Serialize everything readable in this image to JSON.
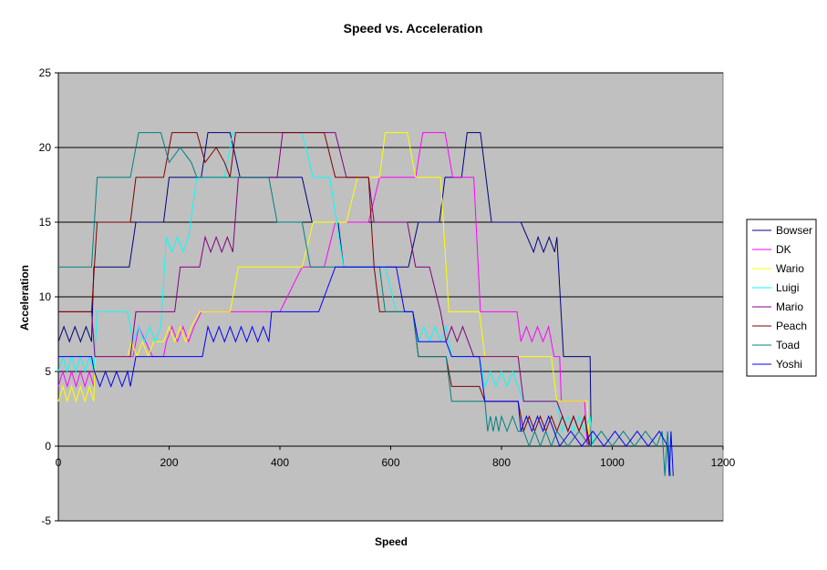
{
  "chart_data": {
    "type": "line",
    "title": "Speed vs. Acceleration",
    "x_label": "Speed",
    "y_label": "Acceleration",
    "xlim": [
      0,
      1200
    ],
    "xticks": [
      0,
      200,
      400,
      600,
      800,
      1000,
      1200
    ],
    "ylim": [
      -5,
      25
    ],
    "yticks": [
      -5,
      0,
      5,
      10,
      15,
      20,
      25
    ],
    "grid": true,
    "legend": "right",
    "series": [
      {
        "name": "Bowser",
        "color": "#000080",
        "x": [
          0,
          10,
          20,
          30,
          40,
          50,
          60,
          64,
          128,
          140,
          190,
          200,
          258,
          270,
          310,
          328,
          440,
          458,
          505,
          515,
          632,
          650,
          688,
          698,
          728,
          738,
          762,
          782,
          835,
          858,
          866,
          876,
          886,
          896,
          900,
          912,
          960,
          962
        ],
        "values": [
          7,
          8,
          7,
          8,
          7,
          8,
          7,
          12,
          12,
          15,
          15,
          18,
          18,
          21,
          21,
          18,
          18,
          15,
          15,
          12,
          12,
          15,
          15,
          18,
          18,
          21,
          21,
          15,
          15,
          13,
          14,
          13,
          14,
          13,
          14,
          6,
          6,
          0
        ]
      },
      {
        "name": "DK",
        "color": "#ff00ff",
        "x": [
          0,
          8,
          16,
          24,
          32,
          40,
          48,
          56,
          64,
          66,
          135,
          145,
          170,
          190,
          195,
          205,
          215,
          225,
          235,
          245,
          258,
          400,
          440,
          480,
          500,
          560,
          580,
          645,
          658,
          698,
          712,
          750,
          762,
          828,
          835,
          845,
          855,
          865,
          875,
          885,
          895,
          905,
          908,
          950,
          955
        ],
        "values": [
          4,
          5,
          4,
          5,
          4,
          5,
          4,
          5,
          4,
          6,
          6,
          8,
          6,
          6,
          7,
          8,
          7,
          8,
          7,
          8,
          9,
          9,
          12,
          12,
          15,
          15,
          18,
          18,
          21,
          21,
          18,
          18,
          9,
          9,
          7,
          8,
          7,
          8,
          7,
          8,
          6,
          6,
          3,
          3,
          0
        ]
      },
      {
        "name": "Wario",
        "color": "#ffff00",
        "x": [
          0,
          8,
          16,
          24,
          32,
          40,
          48,
          56,
          64,
          66,
          125,
          132,
          142,
          152,
          162,
          172,
          190,
          200,
          210,
          220,
          230,
          240,
          255,
          310,
          325,
          440,
          460,
          520,
          540,
          580,
          590,
          630,
          645,
          690,
          705,
          760,
          770,
          890,
          900,
          955,
          958
        ],
        "values": [
          3,
          4,
          3,
          4,
          3,
          4,
          3,
          4,
          3,
          6,
          6,
          7,
          6,
          7,
          6,
          7,
          7,
          8,
          7,
          8,
          7,
          8,
          9,
          9,
          12,
          12,
          15,
          15,
          18,
          18,
          21,
          21,
          18,
          18,
          9,
          9,
          6,
          6,
          3,
          3,
          0
        ]
      },
      {
        "name": "Luigi",
        "color": "#00ffff",
        "x": [
          0,
          8,
          16,
          24,
          32,
          40,
          48,
          56,
          64,
          70,
          125,
          135,
          145,
          155,
          165,
          175,
          185,
          195,
          205,
          215,
          225,
          235,
          250,
          300,
          315,
          440,
          460,
          490,
          515,
          590,
          610,
          640,
          650,
          660,
          670,
          680,
          690,
          700,
          710,
          760,
          770,
          780,
          790,
          800,
          810,
          820,
          830,
          840,
          900,
          910,
          920,
          930,
          940,
          950,
          960,
          965
        ],
        "values": [
          5,
          6,
          5,
          6,
          5,
          6,
          5,
          6,
          5,
          9,
          9,
          7,
          8,
          7,
          8,
          7,
          8,
          14,
          13,
          14,
          13,
          14,
          18,
          18,
          21,
          21,
          18,
          18,
          12,
          12,
          9,
          9,
          7,
          8,
          7,
          8,
          7,
          8,
          6,
          6,
          4,
          5,
          4,
          5,
          4,
          5,
          4,
          3,
          3,
          1,
          2,
          1,
          2,
          1,
          2,
          0
        ]
      },
      {
        "name": "Mario",
        "color": "#800080",
        "x": [
          0,
          60,
          66,
          130,
          140,
          210,
          220,
          255,
          265,
          275,
          285,
          295,
          305,
          315,
          325,
          395,
          405,
          500,
          520,
          560,
          570,
          630,
          645,
          670,
          690,
          700,
          710,
          720,
          730,
          740,
          750,
          830,
          840,
          900,
          910,
          920,
          930,
          940,
          950,
          958
        ],
        "values": [
          9,
          9,
          6,
          6,
          9,
          9,
          12,
          12,
          14,
          13,
          14,
          13,
          14,
          13,
          18,
          18,
          21,
          21,
          18,
          18,
          15,
          15,
          12,
          12,
          9,
          7,
          8,
          7,
          8,
          7,
          6,
          6,
          3,
          3,
          2,
          1,
          2,
          1,
          2,
          0
        ]
      },
      {
        "name": "Peach",
        "color": "#800000",
        "x": [
          0,
          60,
          70,
          130,
          140,
          190,
          205,
          250,
          265,
          285,
          300,
          310,
          320,
          480,
          500,
          560,
          570,
          580,
          640,
          650,
          700,
          710,
          760,
          770,
          830,
          840,
          850,
          860,
          870,
          880,
          890,
          900,
          910,
          920,
          930,
          940,
          950,
          960
        ],
        "values": [
          9,
          9,
          15,
          15,
          18,
          18,
          21,
          21,
          19,
          20,
          19,
          18,
          21,
          21,
          18,
          18,
          12,
          9,
          9,
          6,
          6,
          4,
          4,
          3,
          3,
          1,
          2,
          1,
          2,
          1,
          2,
          1,
          2,
          1,
          2,
          1,
          2,
          0
        ]
      },
      {
        "name": "Toad",
        "color": "#008080",
        "x": [
          0,
          60,
          70,
          130,
          145,
          185,
          200,
          220,
          240,
          250,
          380,
          395,
          440,
          455,
          580,
          590,
          640,
          650,
          700,
          710,
          770,
          775,
          780,
          785,
          790,
          795,
          800,
          810,
          820,
          830,
          840,
          850,
          860,
          870,
          880,
          890,
          900,
          920,
          940,
          960,
          980,
          1000,
          1020,
          1040,
          1060,
          1080,
          1090,
          1095,
          1100,
          1105
        ],
        "values": [
          12,
          12,
          18,
          18,
          21,
          21,
          19,
          20,
          19,
          18,
          18,
          15,
          15,
          12,
          12,
          9,
          9,
          6,
          6,
          3,
          3,
          1,
          2,
          1,
          2,
          1,
          2,
          1,
          2,
          1,
          1,
          0,
          1,
          0,
          1,
          0,
          1,
          0,
          1,
          0,
          1,
          0,
          1,
          0,
          1,
          0,
          1,
          -2,
          1,
          -2
        ]
      },
      {
        "name": "Yoshi",
        "color": "#0000ff",
        "x": [
          0,
          60,
          65,
          75,
          85,
          95,
          105,
          115,
          125,
          130,
          140,
          260,
          270,
          280,
          290,
          300,
          310,
          320,
          330,
          340,
          350,
          360,
          370,
          380,
          385,
          470,
          500,
          610,
          625,
          640,
          650,
          700,
          710,
          760,
          770,
          830,
          835,
          845,
          855,
          865,
          875,
          885,
          895,
          905,
          925,
          945,
          965,
          985,
          1005,
          1025,
          1045,
          1065,
          1085,
          1100,
          1103,
          1106,
          1110
        ],
        "values": [
          6,
          6,
          5,
          4,
          5,
          4,
          5,
          4,
          5,
          4,
          6,
          6,
          8,
          7,
          8,
          7,
          8,
          7,
          8,
          7,
          8,
          7,
          8,
          7,
          9,
          9,
          12,
          12,
          9,
          9,
          7,
          7,
          6,
          6,
          3,
          3,
          1,
          2,
          1,
          2,
          1,
          2,
          1,
          0,
          1,
          0,
          1,
          0,
          1,
          0,
          1,
          0,
          1,
          0,
          -2,
          1,
          -2
        ]
      }
    ]
  }
}
